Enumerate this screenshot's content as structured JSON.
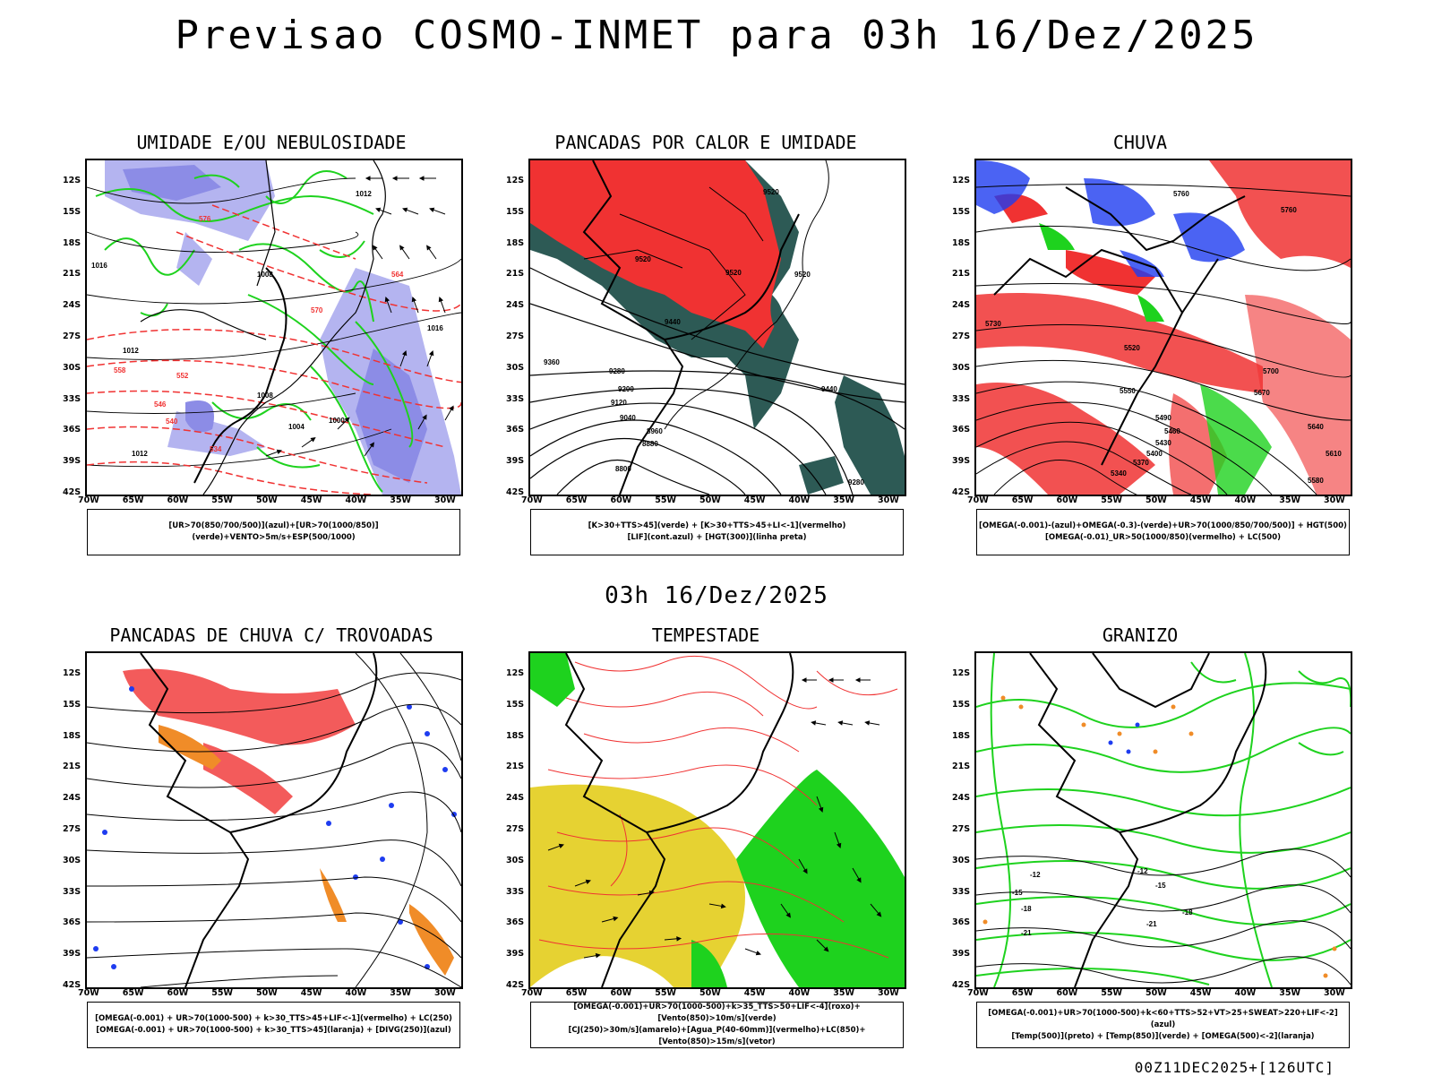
{
  "title": "Previsao COSMO-INMET  para 03h 16/Dez/2025",
  "subtitle": "03h 16/Dez/2025",
  "footer": "00Z11DEC2025+[126UTC]",
  "lat_labels": [
    "12S",
    "15S",
    "18S",
    "21S",
    "24S",
    "27S",
    "30S",
    "33S",
    "36S",
    "39S",
    "42S"
  ],
  "lon_labels": [
    "70W",
    "65W",
    "60W",
    "55W",
    "50W",
    "45W",
    "40W",
    "35W",
    "30W"
  ],
  "panels": [
    {
      "title": "UMIDADE E/OU NEBULOSIDADE",
      "legend": [
        "[UR>70(850/700/500)](azul)+[UR>70(1000/850)](verde)+VENTO>5m/s+ESP(500/1000)"
      ],
      "labels_black": [
        "1012",
        "1016",
        "1012",
        "1008",
        "1004",
        "1008",
        "1000",
        "1012",
        "1016"
      ],
      "labels_red": [
        "552",
        "546",
        "540",
        "534",
        "564",
        "570",
        "576",
        "558"
      ]
    },
    {
      "title": "PANCADAS POR CALOR E UMIDADE",
      "legend": [
        "[K>30+TTS>45](verde) + [K>30+TTS>45+LI<-1](vermelho)",
        "[LIF](cont.azul) + [HGT(300)](linha preta)"
      ],
      "labels_black": [
        "9520",
        "9520",
        "9520",
        "9440",
        "9360",
        "9280",
        "9200",
        "9120",
        "9040",
        "8960",
        "8880",
        "8800",
        "9440",
        "9280",
        "9520"
      ]
    },
    {
      "title": "CHUVA",
      "legend": [
        "[OMEGA(-0.001)-(azul)+OMEGA(-0.3)-(verde)+UR>70(1000/850/700/500)] + HGT(500)",
        "[OMEGA(-0.01)_UR>50(1000/850)(vermelho) + LC(500)"
      ],
      "labels_black": [
        "5760",
        "5760",
        "5730",
        "5700",
        "5670",
        "5640",
        "5610",
        "5580",
        "5550",
        "5520",
        "5490",
        "5460",
        "5430",
        "5400",
        "5370",
        "5340"
      ]
    },
    {
      "title": "PANCADAS DE CHUVA C/ TROVOADAS",
      "legend": [
        "[OMEGA(-0.001) + UR>70(1000-500) + k>30_TTS>45+LIF<-1](vermelho) + LC(250)",
        "[OMEGA(-0.001) + UR>70(1000-500) + k>30_TTS>45](laranja) + [DIVG(250)](azul)"
      ]
    },
    {
      "title": "TEMPESTADE",
      "legend": [
        "[OMEGA(-0.001)+UR>70(1000-500)+k>35_TTS>50+LIF<-4](roxo)+[Vento(850)>10m/s](verde)",
        "[CJ(250)>30m/s](amarelo)+[Agua_P(40-60mm)](vermelho)+LC(850)+[Vento(850)>15m/s](vetor)"
      ]
    },
    {
      "title": "GRANIZO",
      "legend": [
        "[OMEGA(-0.001)+UR>70(1000-500)+k<60+TTS>52+VT>25+SWEAT>220+LIF<-2](azul)",
        "[Temp(500)](preto) + [Temp(850)](verde) + [OMEGA(500)<-2](laranja)"
      ],
      "labels_black": [
        "-12",
        "-12",
        "-15",
        "-15",
        "-18",
        "-18",
        "-21",
        "-21"
      ]
    }
  ],
  "colors": {
    "blue_light": "#b4b4f0",
    "blue_mid": "#8c8ce6",
    "green": "#1ed21e",
    "red": "#f03232",
    "dark_teal": "#2d5a55",
    "yellow": "#e6d232",
    "orange": "#f08c28",
    "blue": "#1e3cf0"
  }
}
